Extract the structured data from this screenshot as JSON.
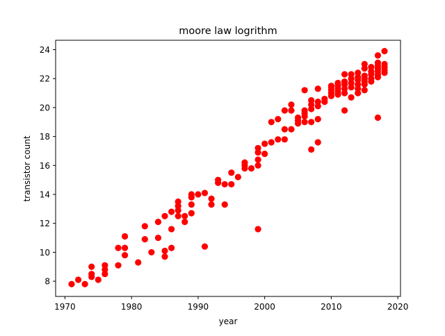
{
  "chart_data": {
    "type": "scatter",
    "title": "moore law logrithm",
    "xlabel": "year",
    "ylabel": "transistor count",
    "xlim": [
      1968.6,
      2020.4
    ],
    "ylim": [
      6.95,
      24.65
    ],
    "xticks": [
      1970,
      1980,
      1990,
      2000,
      2010,
      2020
    ],
    "yticks": [
      8,
      10,
      12,
      14,
      16,
      18,
      20,
      22,
      24
    ],
    "grid": false,
    "legend": "none",
    "marker_color": "#ff0000",
    "points": [
      [
        1971,
        7.8
      ],
      [
        1972,
        8.1
      ],
      [
        1973,
        7.8
      ],
      [
        1974,
        8.3
      ],
      [
        1974,
        8.5
      ],
      [
        1974,
        9.0
      ],
      [
        1975,
        8.1
      ],
      [
        1976,
        8.5
      ],
      [
        1976,
        8.8
      ],
      [
        1976,
        9.1
      ],
      [
        1978,
        9.1
      ],
      [
        1978,
        10.3
      ],
      [
        1979,
        9.8
      ],
      [
        1979,
        10.3
      ],
      [
        1979,
        11.1
      ],
      [
        1981,
        9.3
      ],
      [
        1982,
        10.9
      ],
      [
        1982,
        11.8
      ],
      [
        1983,
        10.0
      ],
      [
        1984,
        11.0
      ],
      [
        1984,
        12.1
      ],
      [
        1985,
        9.7
      ],
      [
        1985,
        10.1
      ],
      [
        1985,
        12.5
      ],
      [
        1986,
        10.3
      ],
      [
        1986,
        11.6
      ],
      [
        1986,
        12.8
      ],
      [
        1987,
        12.5
      ],
      [
        1987,
        12.9
      ],
      [
        1987,
        13.2
      ],
      [
        1987,
        13.5
      ],
      [
        1988,
        12.1
      ],
      [
        1988,
        12.5
      ],
      [
        1989,
        12.7
      ],
      [
        1989,
        13.3
      ],
      [
        1989,
        13.8
      ],
      [
        1989,
        14.0
      ],
      [
        1990,
        14.0
      ],
      [
        1991,
        10.4
      ],
      [
        1991,
        14.1
      ],
      [
        1992,
        13.3
      ],
      [
        1992,
        13.7
      ],
      [
        1993,
        14.8
      ],
      [
        1993,
        15.0
      ],
      [
        1994,
        13.3
      ],
      [
        1994,
        14.7
      ],
      [
        1995,
        14.7
      ],
      [
        1995,
        15.5
      ],
      [
        1996,
        15.2
      ],
      [
        1997,
        15.8
      ],
      [
        1997,
        16.0
      ],
      [
        1997,
        16.2
      ],
      [
        1998,
        15.8
      ],
      [
        1999,
        11.6
      ],
      [
        1999,
        16.0
      ],
      [
        1999,
        16.4
      ],
      [
        1999,
        16.9
      ],
      [
        1999,
        17.2
      ],
      [
        2000,
        16.8
      ],
      [
        2000,
        17.5
      ],
      [
        2001,
        17.6
      ],
      [
        2001,
        19.0
      ],
      [
        2002,
        17.8
      ],
      [
        2002,
        19.2
      ],
      [
        2003,
        17.8
      ],
      [
        2003,
        18.5
      ],
      [
        2003,
        19.8
      ],
      [
        2004,
        18.5
      ],
      [
        2004,
        19.8
      ],
      [
        2004,
        20.2
      ],
      [
        2005,
        18.9
      ],
      [
        2005,
        19.1
      ],
      [
        2005,
        19.3
      ],
      [
        2006,
        19.0
      ],
      [
        2006,
        19.4
      ],
      [
        2006,
        19.6
      ],
      [
        2006,
        19.8
      ],
      [
        2006,
        21.2
      ],
      [
        2007,
        17.1
      ],
      [
        2007,
        19.0
      ],
      [
        2007,
        19.9
      ],
      [
        2007,
        20.2
      ],
      [
        2007,
        20.5
      ],
      [
        2008,
        17.6
      ],
      [
        2008,
        19.2
      ],
      [
        2008,
        20.1
      ],
      [
        2008,
        20.4
      ],
      [
        2008,
        21.3
      ],
      [
        2009,
        20.4
      ],
      [
        2009,
        20.6
      ],
      [
        2010,
        20.8
      ],
      [
        2010,
        21.0
      ],
      [
        2010,
        21.2
      ],
      [
        2010,
        21.4
      ],
      [
        2010,
        21.5
      ],
      [
        2011,
        20.9
      ],
      [
        2011,
        21.1
      ],
      [
        2011,
        21.3
      ],
      [
        2011,
        21.5
      ],
      [
        2011,
        21.7
      ],
      [
        2012,
        19.8
      ],
      [
        2012,
        21.0
      ],
      [
        2012,
        21.3
      ],
      [
        2012,
        21.6
      ],
      [
        2012,
        21.8
      ],
      [
        2012,
        22.3
      ],
      [
        2013,
        20.7
      ],
      [
        2013,
        21.4
      ],
      [
        2013,
        21.7
      ],
      [
        2013,
        22.0
      ],
      [
        2013,
        22.3
      ],
      [
        2014,
        21.0
      ],
      [
        2014,
        21.3
      ],
      [
        2014,
        21.6
      ],
      [
        2014,
        21.9
      ],
      [
        2014,
        22.1
      ],
      [
        2014,
        22.4
      ],
      [
        2015,
        21.2
      ],
      [
        2015,
        21.6
      ],
      [
        2015,
        21.8
      ],
      [
        2015,
        22.0
      ],
      [
        2015,
        22.2
      ],
      [
        2015,
        22.7
      ],
      [
        2015,
        23.0
      ],
      [
        2016,
        21.8
      ],
      [
        2016,
        22.0
      ],
      [
        2016,
        22.3
      ],
      [
        2016,
        22.5
      ],
      [
        2016,
        22.8
      ],
      [
        2017,
        19.3
      ],
      [
        2017,
        22.1
      ],
      [
        2017,
        22.3
      ],
      [
        2017,
        22.5
      ],
      [
        2017,
        22.7
      ],
      [
        2017,
        22.9
      ],
      [
        2017,
        23.1
      ],
      [
        2017,
        23.6
      ],
      [
        2018,
        22.4
      ],
      [
        2018,
        22.6
      ],
      [
        2018,
        22.8
      ],
      [
        2018,
        23.0
      ],
      [
        2018,
        23.9
      ]
    ]
  }
}
